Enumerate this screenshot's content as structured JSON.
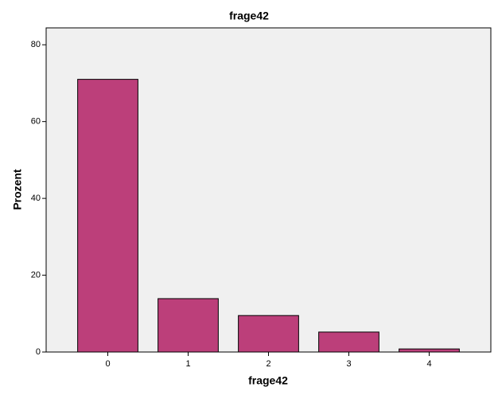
{
  "chart_data": {
    "type": "bar",
    "title": "frage42",
    "x_label": "frage42",
    "y_label": "Prozent",
    "categories": [
      "0",
      "1",
      "2",
      "3",
      "4"
    ],
    "values": [
      71,
      13.9,
      9.5,
      5.2,
      0.8
    ],
    "color": "#bc3f7a",
    "ylim": [
      0,
      84.4
    ],
    "yticks": [
      0,
      20,
      40,
      60,
      80
    ]
  }
}
